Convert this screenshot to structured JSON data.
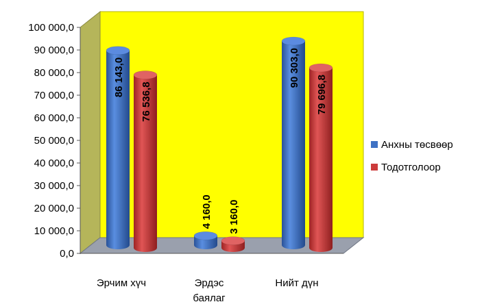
{
  "chart_data": {
    "type": "bar",
    "style": "3d-cylinder",
    "categories": [
      "Эрчим хүч",
      "Эрдэс баялаг",
      "Нийт дүн"
    ],
    "series": [
      {
        "name": "Анхны төсвөөр",
        "color": "#3f72c4",
        "values": [
          86143.0,
          4160.0,
          90303.0
        ],
        "labels": [
          "86 143,0",
          "4 160,0",
          "90 303,0"
        ]
      },
      {
        "name": "Тодотголоор",
        "color": "#cc3b3b",
        "values": [
          76536.8,
          3160.0,
          79696.8
        ],
        "labels": [
          "76 536,8",
          "3 160,0",
          "79 696,8"
        ]
      }
    ],
    "yticks": [
      "0,0",
      "10 000,0",
      "20 000,0",
      "30 000,0",
      "40 000,0",
      "50 000,0",
      "60 000,0",
      "70 000,0",
      "80 000,0",
      "90 000,0",
      "100 000,0"
    ],
    "ylim": [
      0,
      100000
    ],
    "plot_background": "#ffff00",
    "legend_position": "right",
    "grid": false
  }
}
